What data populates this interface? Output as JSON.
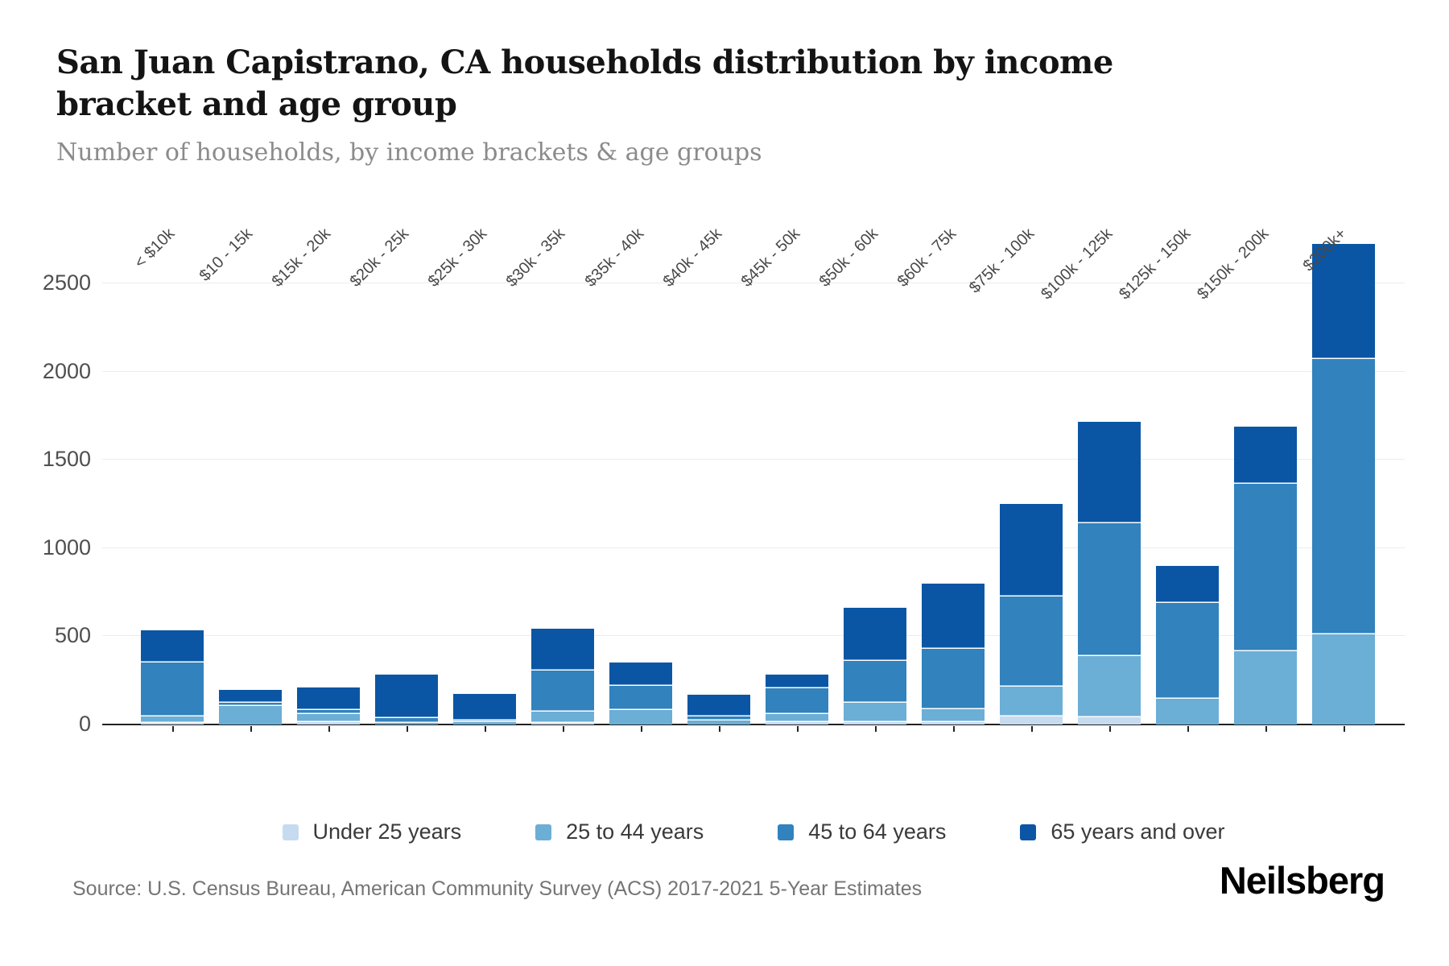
{
  "header": {
    "title": "San Juan Capistrano, CA households distribution by income bracket and age group",
    "subtitle": "Number of households, by income brackets & age groups"
  },
  "footer": {
    "source": "Source: U.S. Census Bureau, American Community Survey (ACS) 2017-2021 5-Year Estimates",
    "brand": "Neilsberg"
  },
  "colors": {
    "axis": "#222222",
    "gridline": "#ececec",
    "under_25": "#c6dbef",
    "25_to_44": "#6baed6",
    "45_to_64": "#3182bd",
    "65_and_over": "#0b56a4"
  },
  "chart_data": {
    "type": "bar",
    "stacked": true,
    "grid": true,
    "legend_position": "bottom",
    "title": "San Juan Capistrano, CA households distribution by income bracket and age group",
    "xlabel": "",
    "ylabel": "Number of households",
    "ylim": [
      0,
      2920
    ],
    "y_ticks": [
      0,
      500,
      1000,
      1500,
      2000,
      2500
    ],
    "categories": [
      "< $10k",
      "$10 - 15k",
      "$15k - 20k",
      "$20k - 25k",
      "$25k - 30k",
      "$30k - 35k",
      "$35k - 40k",
      "$40k - 45k",
      "$45k - 50k",
      "$50k - 60k",
      "$60k - 75k",
      "$75k - 100k",
      "$100k - 125k",
      "$125k - 150k",
      "$150k - 200k",
      "$200k+"
    ],
    "series": [
      {
        "name": "Under 25 years",
        "color": "#c6dbef",
        "values": [
          10,
          0,
          15,
          0,
          0,
          10,
          0,
          0,
          15,
          15,
          15,
          45,
          40,
          0,
          0,
          0
        ]
      },
      {
        "name": "25 to 44 years",
        "color": "#6baed6",
        "values": [
          35,
          105,
          45,
          10,
          15,
          65,
          80,
          25,
          45,
          110,
          70,
          170,
          350,
          145,
          415,
          510
        ]
      },
      {
        "name": "45 to 64 years",
        "color": "#3182bd",
        "values": [
          305,
          20,
          20,
          25,
          10,
          230,
          140,
          20,
          145,
          235,
          345,
          510,
          750,
          545,
          950,
          1560
        ]
      },
      {
        "name": "65 years and over",
        "color": "#0b56a4",
        "values": [
          185,
          70,
          130,
          250,
          150,
          240,
          130,
          125,
          80,
          300,
          370,
          525,
          575,
          210,
          325,
          655
        ]
      }
    ]
  }
}
